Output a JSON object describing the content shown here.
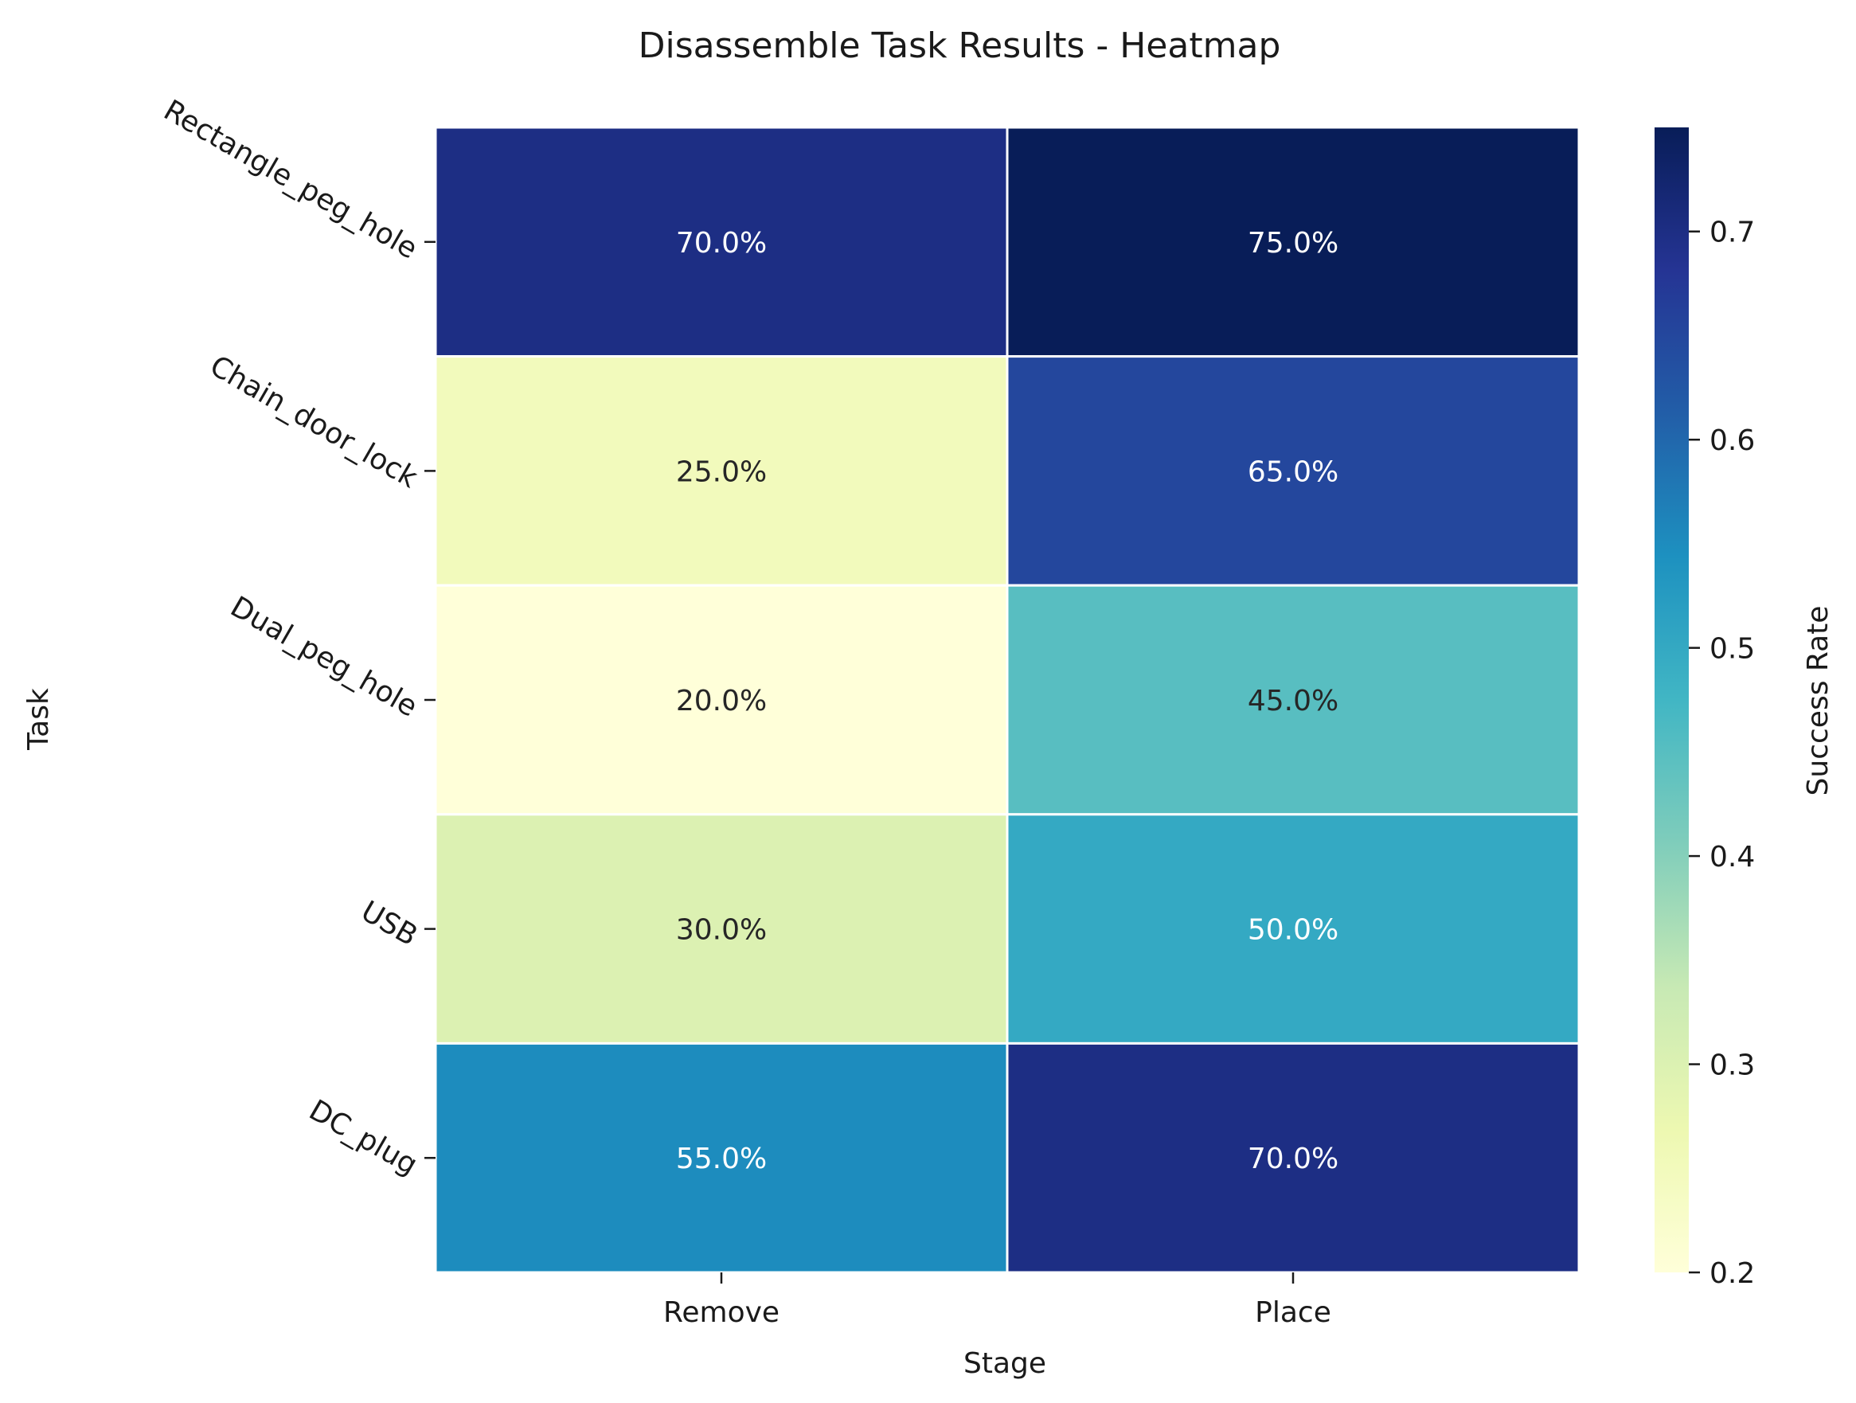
{
  "chart_data": {
    "type": "heatmap",
    "title": "Disassemble Task Results - Heatmap",
    "xlabel": "Stage",
    "ylabel": "Task",
    "x_categories": [
      "Remove",
      "Place"
    ],
    "y_categories": [
      "Rectangle_peg_hole",
      "Chain_door_lock",
      "Dual_peg_hole",
      "USB",
      "DC_plug"
    ],
    "values": [
      [
        0.7,
        0.75
      ],
      [
        0.25,
        0.65
      ],
      [
        0.2,
        0.45
      ],
      [
        0.3,
        0.5
      ],
      [
        0.55,
        0.7
      ]
    ],
    "cell_labels": [
      [
        "70.0%",
        "75.0%"
      ],
      [
        "25.0%",
        "65.0%"
      ],
      [
        "20.0%",
        "45.0%"
      ],
      [
        "30.0%",
        "50.0%"
      ],
      [
        "55.0%",
        "70.0%"
      ]
    ],
    "colormap": "YlGnBu",
    "colorbar": {
      "label": "Success Rate",
      "range": [
        0.2,
        0.75
      ],
      "ticks": [
        0.2,
        0.3,
        0.4,
        0.5,
        0.6,
        0.7
      ],
      "tick_labels": [
        "0.2",
        "0.3",
        "0.4",
        "0.5",
        "0.6",
        "0.7"
      ]
    }
  }
}
